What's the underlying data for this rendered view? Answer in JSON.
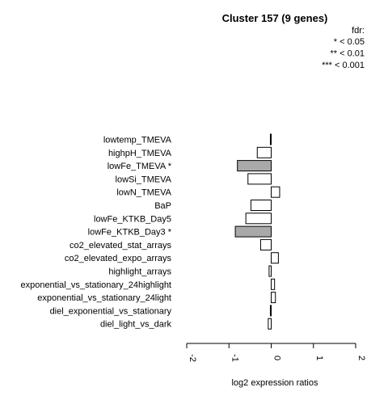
{
  "chart_data": {
    "type": "bar",
    "orientation": "horizontal",
    "title": "Cluster 157 (9 genes)",
    "xlabel": "log2 expression ratios",
    "ylabel": "",
    "xlim": [
      -2,
      2
    ],
    "xticks": [
      "-2",
      "-1",
      "0",
      "1",
      "2"
    ],
    "legend": {
      "title": "fdr:",
      "entries": [
        "* < 0.05",
        "** < 0.01",
        "*** < 0.001"
      ],
      "position": "top-right"
    },
    "categories": [
      "lowtemp_TMEVA",
      "highpH_TMEVA",
      "lowFe_TMEVA *",
      "lowSi_TMEVA",
      "lowN_TMEVA",
      "BaP",
      "lowFe_KTKB_Day5",
      "lowFe_KTKB_Day3 *",
      "co2_elevated_stat_arrays",
      "co2_elevated_expo_arrays",
      "highlight_arrays",
      "exponential_vs_stationary_24highlight",
      "exponential_vs_stationary_24light",
      "diel_exponential_vs_stationary",
      "diel_light_vs_dark"
    ],
    "values": [
      -0.02,
      -0.33,
      -0.8,
      -0.55,
      0.2,
      -0.48,
      -0.6,
      -0.85,
      -0.25,
      0.17,
      -0.05,
      0.08,
      0.1,
      -0.02,
      -0.07
    ],
    "significant": [
      false,
      false,
      true,
      false,
      false,
      false,
      false,
      true,
      false,
      false,
      false,
      false,
      false,
      false,
      false
    ],
    "colors": {
      "normal": "#ffffff",
      "significant": "#a9a9a9",
      "stroke": "#000000"
    }
  }
}
